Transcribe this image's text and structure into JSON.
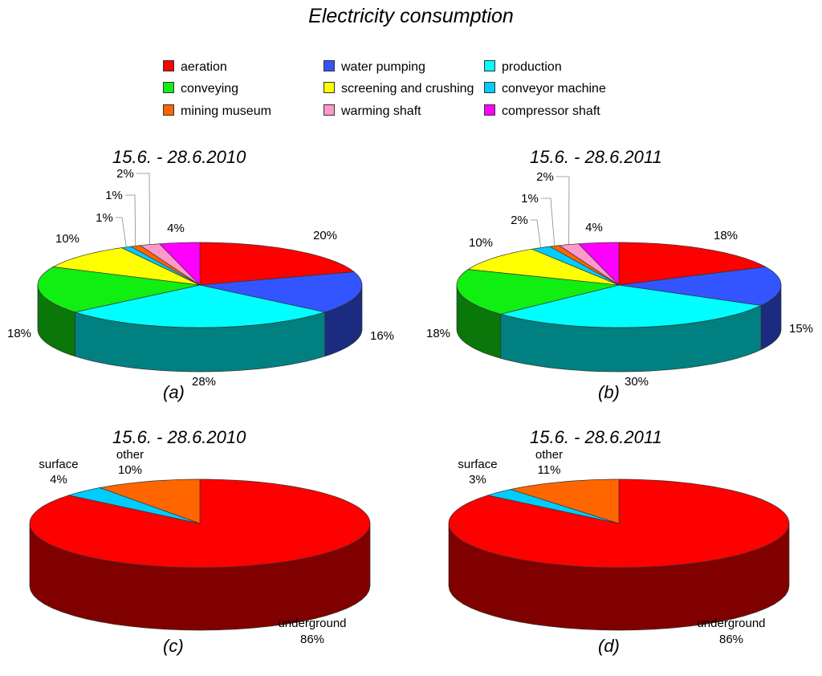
{
  "title": "Electricity consumption",
  "legend": [
    {
      "label": "aeration",
      "color": "#ff0000"
    },
    {
      "label": "water pumping",
      "color": "#3355ff"
    },
    {
      "label": "production",
      "color": "#00ffff"
    },
    {
      "label": "conveying",
      "color": "#11ee11"
    },
    {
      "label": "screening and crushing",
      "color": "#ffff00"
    },
    {
      "label": "conveyor machine",
      "color": "#00ccff"
    },
    {
      "label": "mining museum",
      "color": "#ff6600"
    },
    {
      "label": "warming shaft",
      "color": "#ff99cc"
    },
    {
      "label": "compressor shaft",
      "color": "#ff00ff"
    }
  ],
  "chart_data": [
    {
      "type": "pie",
      "panel": "(a)",
      "title": "15.6. - 28.6.2010",
      "slices": [
        {
          "label": "aeration",
          "value": 20,
          "text": "20%"
        },
        {
          "label": "water pumping",
          "value": 16,
          "text": "16%"
        },
        {
          "label": "production",
          "value": 28,
          "text": "28%"
        },
        {
          "label": "conveying",
          "value": 18,
          "text": "18%"
        },
        {
          "label": "screening and crushing",
          "value": 10,
          "text": "10%"
        },
        {
          "label": "conveyor machine",
          "value": 1,
          "text": "1%"
        },
        {
          "label": "mining museum",
          "value": 1,
          "text": "1%"
        },
        {
          "label": "warming shaft",
          "value": 2,
          "text": "2%"
        },
        {
          "label": "compressor shaft",
          "value": 4,
          "text": "4%"
        }
      ]
    },
    {
      "type": "pie",
      "panel": "(b)",
      "title": "15.6. - 28.6.2011",
      "slices": [
        {
          "label": "aeration",
          "value": 18,
          "text": "18%"
        },
        {
          "label": "water pumping",
          "value": 15,
          "text": "15%"
        },
        {
          "label": "production",
          "value": 30,
          "text": "30%"
        },
        {
          "label": "conveying",
          "value": 18,
          "text": "18%"
        },
        {
          "label": "screening and crushing",
          "value": 10,
          "text": "10%"
        },
        {
          "label": "conveyor machine",
          "value": 2,
          "text": "2%"
        },
        {
          "label": "mining museum",
          "value": 1,
          "text": "1%"
        },
        {
          "label": "warming shaft",
          "value": 2,
          "text": "2%"
        },
        {
          "label": "compressor shaft",
          "value": 4,
          "text": "4%"
        }
      ]
    },
    {
      "type": "pie",
      "panel": "(c)",
      "title": "15.6. - 28.6.2010",
      "slices": [
        {
          "label": "underground",
          "value": 86,
          "text": "86%",
          "color": "#ff0000"
        },
        {
          "label": "surface",
          "value": 4,
          "text": "4%",
          "color": "#00ccff"
        },
        {
          "label": "other",
          "value": 10,
          "text": "10%",
          "color": "#ff6600"
        }
      ]
    },
    {
      "type": "pie",
      "panel": "(d)",
      "title": "15.6. - 28.6.2011",
      "slices": [
        {
          "label": "underground",
          "value": 86,
          "text": "86%",
          "color": "#ff0000"
        },
        {
          "label": "surface",
          "value": 3,
          "text": "3%",
          "color": "#00ccff"
        },
        {
          "label": "other",
          "value": 11,
          "text": "11%",
          "color": "#ff6600"
        }
      ]
    }
  ]
}
